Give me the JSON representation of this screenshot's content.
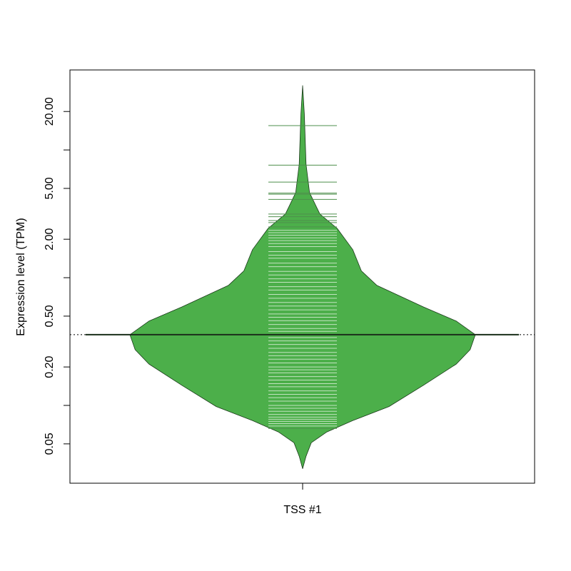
{
  "chart_data": {
    "type": "beanplot",
    "ylabel": "Expression level (TPM)",
    "categories": [
      "TSS #1"
    ],
    "log_scale": true,
    "ylim": [
      0.0246,
      42.3
    ],
    "yticks": [
      {
        "value": 0.05,
        "label": "0.05"
      },
      {
        "value": 0.1,
        "label": null
      },
      {
        "value": 0.2,
        "label": "0.20"
      },
      {
        "value": 0.5,
        "label": "0.50"
      },
      {
        "value": 1,
        "label": null
      },
      {
        "value": 2,
        "label": "2.00"
      },
      {
        "value": 5,
        "label": "5.00"
      },
      {
        "value": 10,
        "label": null
      },
      {
        "value": 20,
        "label": "20.00"
      }
    ],
    "color": "#4caf4a",
    "density": {
      "y": [
        31.9,
        19.1,
        7.74,
        4.63,
        3.15,
        2.43,
        1.66,
        1.13,
        0.87,
        0.59,
        0.457,
        0.358,
        0.273,
        0.211,
        0.144,
        0.098,
        0.076,
        0.062,
        0.051,
        0.04,
        0.032
      ],
      "width": [
        0,
        0.01,
        0.02,
        0.04,
        0.1,
        0.2,
        0.29,
        0.34,
        0.43,
        0.7,
        0.89,
        1,
        0.97,
        0.89,
        0.7,
        0.5,
        0.29,
        0.14,
        0.05,
        0.02,
        0
      ]
    },
    "mean": 0.358,
    "overall_mean": 0.358,
    "points": [
      15.5,
      7.6,
      5.6,
      4.6,
      4.5,
      4.1,
      3.15,
      3.0,
      2.8,
      2.7,
      2.5,
      2.35,
      2.25,
      2.15,
      2.05,
      1.95,
      1.85,
      1.75,
      1.6,
      1.5,
      1.42,
      1.3,
      1.22,
      1.12,
      1.05,
      0.98,
      0.92,
      0.85,
      0.8,
      0.74,
      0.69,
      0.64,
      0.6,
      0.56,
      0.52,
      0.49,
      0.46,
      0.43,
      0.4,
      0.38,
      0.34,
      0.32,
      0.3,
      0.28,
      0.26,
      0.245,
      0.23,
      0.215,
      0.2,
      0.19,
      0.18,
      0.168,
      0.158,
      0.148,
      0.14,
      0.13,
      0.122,
      0.115,
      0.108,
      0.1,
      0.095,
      0.09,
      0.085,
      0.081,
      0.078,
      0.075,
      0.072,
      0.069,
      0.066
    ]
  }
}
